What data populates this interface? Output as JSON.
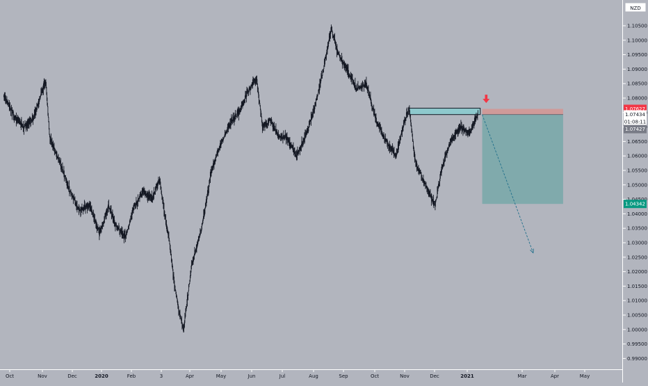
{
  "chart_data": {
    "type": "line",
    "title": "",
    "currency_badge": "NZD",
    "y_ticks": [
      "1.10500",
      "1.10000",
      "1.09500",
      "1.09000",
      "1.08500",
      "1.08000",
      "1.07500",
      "1.07000",
      "1.06500",
      "1.06000",
      "1.05500",
      "1.05000",
      "1.04500",
      "1.04000",
      "1.03500",
      "1.03000",
      "1.02500",
      "1.02000",
      "1.01500",
      "1.01000",
      "1.00500",
      "1.00000",
      "0.99500",
      "0.99000"
    ],
    "ylim": [
      0.99,
      1.11
    ],
    "x_ticks": [
      {
        "label": "Oct",
        "bold": false
      },
      {
        "label": "Nov",
        "bold": false
      },
      {
        "label": "Dec",
        "bold": false
      },
      {
        "label": "2020",
        "bold": true
      },
      {
        "label": "Feb",
        "bold": false
      },
      {
        "label": "3",
        "bold": false
      },
      {
        "label": "Apr",
        "bold": false
      },
      {
        "label": "May",
        "bold": false
      },
      {
        "label": "Jun",
        "bold": false
      },
      {
        "label": "Jul",
        "bold": false
      },
      {
        "label": "Aug",
        "bold": false
      },
      {
        "label": "Sep",
        "bold": false
      },
      {
        "label": "Oct",
        "bold": false
      },
      {
        "label": "Nov",
        "bold": false
      },
      {
        "label": "Dec",
        "bold": false
      },
      {
        "label": "2021",
        "bold": true
      },
      {
        "label": "Mar",
        "bold": false
      },
      {
        "label": "Apr",
        "bold": false
      },
      {
        "label": "May",
        "bold": false
      }
    ],
    "series": [
      {
        "x": [
          "2019-09-25",
          "2019-10-05",
          "2019-10-15",
          "2019-10-25",
          "2019-11-03",
          "2019-11-06",
          "2019-11-10",
          "2019-11-20",
          "2019-11-30",
          "2019-12-10",
          "2019-12-20",
          "2019-12-30",
          "2020-01-08",
          "2020-01-15",
          "2020-01-25",
          "2020-02-03",
          "2020-02-12",
          "2020-02-20",
          "2020-02-28",
          "2020-03-04",
          "2020-03-09",
          "2020-03-14",
          "2020-03-19",
          "2020-03-23",
          "2020-03-31",
          "2020-04-10",
          "2020-04-20",
          "2020-04-30",
          "2020-05-10",
          "2020-05-18",
          "2020-05-26",
          "2020-06-04",
          "2020-06-10",
          "2020-06-18",
          "2020-06-26",
          "2020-07-05",
          "2020-07-14",
          "2020-07-22",
          "2020-07-31",
          "2020-08-10",
          "2020-08-18",
          "2020-08-25",
          "2020-09-03",
          "2020-09-12",
          "2020-09-22",
          "2020-10-02",
          "2020-10-12",
          "2020-10-22",
          "2020-10-30",
          "2020-11-04",
          "2020-11-10",
          "2020-11-20",
          "2020-11-30",
          "2020-12-06",
          "2020-12-15",
          "2020-12-25",
          "2021-01-04",
          "2021-01-08",
          "2021-01-12"
        ],
        "y": [
          1.081,
          1.074,
          1.07,
          1.073,
          1.083,
          1.086,
          1.066,
          1.058,
          1.048,
          1.041,
          1.043,
          1.033,
          1.043,
          1.036,
          1.032,
          1.043,
          1.048,
          1.045,
          1.052,
          1.04,
          1.03,
          1.015,
          1.005,
          1.0,
          1.022,
          1.035,
          1.055,
          1.065,
          1.072,
          1.075,
          1.082,
          1.087,
          1.07,
          1.072,
          1.067,
          1.066,
          1.06,
          1.066,
          1.075,
          1.09,
          1.104,
          1.095,
          1.09,
          1.083,
          1.085,
          1.072,
          1.065,
          1.06,
          1.072,
          1.076,
          1.058,
          1.05,
          1.043,
          1.055,
          1.065,
          1.07,
          1.068,
          1.072,
          1.0743
        ]
      }
    ],
    "supply_zone": {
      "x0": "2020-11-04",
      "x1": "2021-01-14",
      "y0": 1.0743,
      "y1": 1.0765
    },
    "stop_zone": {
      "x0": "2021-01-16",
      "x1": "2021-04-07",
      "y0": 1.0743,
      "y1": 1.07627
    },
    "target_zone": {
      "x0": "2021-01-16",
      "x1": "2021-04-07",
      "y0": 1.04342,
      "y1": 1.0743
    },
    "projection_arrow": {
      "x0": "2021-01-16",
      "y0": 1.0743,
      "x1": "2021-03-08",
      "y1": 1.0265
    },
    "down_marker": {
      "x": "2021-01-20",
      "y": 1.0795
    },
    "price_labels": [
      {
        "text": "1.07627",
        "y": 1.07627,
        "bg": "#f23645",
        "fg": "#ffffff"
      },
      {
        "text": "1.07434",
        "y": 1.07434,
        "bg": "#ffffff",
        "fg": "#131722"
      },
      {
        "text": "01:08:11",
        "y": 1.0718,
        "bg": "#ffffff",
        "fg": "#131722"
      },
      {
        "text": "1.07427",
        "y": 1.06927,
        "bg": "#787b86",
        "fg": "#ffffff"
      },
      {
        "text": "1.04342",
        "y": 1.04342,
        "bg": "#089981",
        "fg": "#ffffff"
      }
    ],
    "grid": false
  }
}
